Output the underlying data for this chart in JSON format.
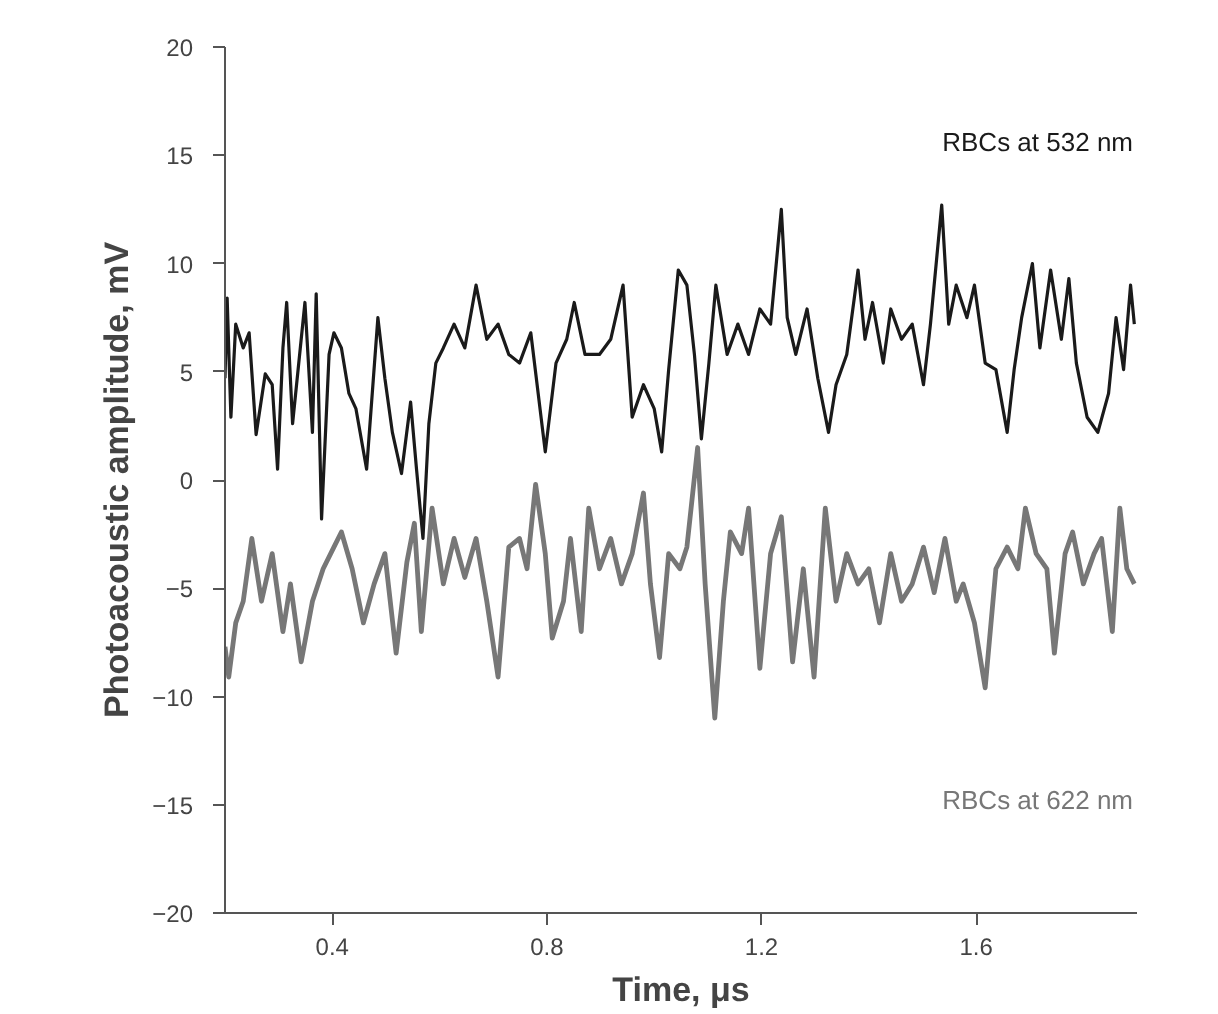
{
  "chart_data": {
    "type": "line",
    "xlabel": "Time, μs",
    "ylabel": "Photoacoustic amplitude, mV",
    "xlim": [
      0.2,
      1.9
    ],
    "ylim": [
      -20,
      20
    ],
    "xticks": [
      0.4,
      0.8,
      1.2,
      1.6
    ],
    "yticks": [
      -20,
      -15,
      -10,
      -5,
      0,
      5,
      10,
      15,
      20
    ],
    "grid": false,
    "legend": false,
    "marker": "none",
    "line_style": "solid",
    "series": [
      {
        "name": "RBCs at 532 nm",
        "color": "#1a1a1a",
        "x": [
          0.2,
          0.204,
          0.211,
          0.22,
          0.234,
          0.245,
          0.258,
          0.275,
          0.288,
          0.298,
          0.308,
          0.315,
          0.326,
          0.349,
          0.363,
          0.37,
          0.38,
          0.394,
          0.403,
          0.417,
          0.431,
          0.444,
          0.464,
          0.485,
          0.498,
          0.512,
          0.529,
          0.546,
          0.557,
          0.569,
          0.58,
          0.593,
          0.607,
          0.627,
          0.647,
          0.668,
          0.688,
          0.709,
          0.729,
          0.749,
          0.77,
          0.797,
          0.817,
          0.837,
          0.851,
          0.871,
          0.898,
          0.919,
          0.942,
          0.959,
          0.98,
          1.0,
          1.014,
          1.027,
          1.045,
          1.061,
          1.075,
          1.088,
          1.102,
          1.115,
          1.136,
          1.156,
          1.176,
          1.197,
          1.217,
          1.237,
          1.248,
          1.264,
          1.285,
          1.305,
          1.325,
          1.339,
          1.359,
          1.38,
          1.393,
          1.407,
          1.427,
          1.441,
          1.461,
          1.481,
          1.502,
          1.515,
          1.536,
          1.549,
          1.563,
          1.583,
          1.597,
          1.617,
          1.637,
          1.658,
          1.671,
          1.685,
          1.705,
          1.719,
          1.739,
          1.759,
          1.773,
          1.787,
          1.807,
          1.827,
          1.847,
          1.861,
          1.875,
          1.888,
          1.895
        ],
        "values": [
          4.7,
          8.4,
          2.9,
          7.2,
          6.1,
          6.8,
          2.1,
          4.9,
          4.4,
          0.5,
          6.1,
          8.2,
          2.6,
          8.2,
          2.2,
          8.6,
          -1.8,
          5.8,
          6.8,
          6.1,
          4.0,
          3.3,
          0.5,
          7.5,
          4.7,
          2.2,
          0.3,
          3.6,
          0.5,
          -2.7,
          2.6,
          5.4,
          6.1,
          7.2,
          6.1,
          9.0,
          6.5,
          7.2,
          5.8,
          5.4,
          6.8,
          1.3,
          5.4,
          6.5,
          8.2,
          5.8,
          5.8,
          6.5,
          9.0,
          2.9,
          4.4,
          3.3,
          1.3,
          5.1,
          9.7,
          9.0,
          5.8,
          1.9,
          5.4,
          9.0,
          5.8,
          7.2,
          5.8,
          7.9,
          7.2,
          12.5,
          7.5,
          5.8,
          7.9,
          4.7,
          2.2,
          4.4,
          5.8,
          9.7,
          6.5,
          8.2,
          5.4,
          7.9,
          6.5,
          7.2,
          4.4,
          7.2,
          12.7,
          7.2,
          9.0,
          7.5,
          9.0,
          5.4,
          5.1,
          2.2,
          5.1,
          7.5,
          10.0,
          6.1,
          9.7,
          6.5,
          9.3,
          5.4,
          2.9,
          2.2,
          4.0,
          7.5,
          5.1,
          9.0,
          7.2
        ]
      },
      {
        "name": "RBCs at 622 nm",
        "color": "#777777",
        "x": [
          0.2,
          0.207,
          0.22,
          0.234,
          0.25,
          0.268,
          0.288,
          0.308,
          0.322,
          0.342,
          0.363,
          0.383,
          0.403,
          0.417,
          0.437,
          0.458,
          0.478,
          0.498,
          0.519,
          0.539,
          0.553,
          0.566,
          0.586,
          0.607,
          0.627,
          0.647,
          0.668,
          0.688,
          0.709,
          0.729,
          0.749,
          0.763,
          0.779,
          0.797,
          0.81,
          0.831,
          0.844,
          0.864,
          0.878,
          0.898,
          0.919,
          0.939,
          0.959,
          0.98,
          0.993,
          1.01,
          1.027,
          1.048,
          1.061,
          1.081,
          1.095,
          1.113,
          1.129,
          1.142,
          1.163,
          1.176,
          1.197,
          1.217,
          1.237,
          1.258,
          1.278,
          1.298,
          1.319,
          1.339,
          1.359,
          1.38,
          1.4,
          1.42,
          1.441,
          1.461,
          1.481,
          1.502,
          1.522,
          1.542,
          1.563,
          1.576,
          1.597,
          1.617,
          1.637,
          1.658,
          1.678,
          1.692,
          1.712,
          1.732,
          1.746,
          1.766,
          1.78,
          1.8,
          1.82,
          1.834,
          1.854,
          1.868,
          1.881,
          1.895
        ],
        "values": [
          -7.7,
          -9.1,
          -6.6,
          -5.6,
          -2.7,
          -5.6,
          -3.4,
          -7.0,
          -4.8,
          -8.4,
          -5.6,
          -4.1,
          -3.1,
          -2.4,
          -4.1,
          -6.6,
          -4.8,
          -3.4,
          -8.0,
          -3.8,
          -2.0,
          -7.0,
          -1.3,
          -4.8,
          -2.7,
          -4.5,
          -2.7,
          -5.6,
          -9.1,
          -3.1,
          -2.7,
          -4.1,
          -0.2,
          -3.4,
          -7.3,
          -5.6,
          -2.7,
          -7.0,
          -1.3,
          -4.1,
          -2.7,
          -4.8,
          -3.4,
          -0.6,
          -4.8,
          -8.2,
          -3.4,
          -4.1,
          -3.1,
          1.5,
          -4.8,
          -11.0,
          -5.6,
          -2.4,
          -3.4,
          -1.3,
          -8.7,
          -3.4,
          -1.7,
          -8.4,
          -4.1,
          -9.1,
          -1.3,
          -5.6,
          -3.4,
          -4.8,
          -4.1,
          -6.6,
          -3.4,
          -5.6,
          -4.8,
          -3.1,
          -5.2,
          -2.7,
          -5.6,
          -4.8,
          -6.6,
          -9.6,
          -4.1,
          -3.1,
          -4.1,
          -1.3,
          -3.4,
          -4.1,
          -8.0,
          -3.4,
          -2.4,
          -4.8,
          -3.4,
          -2.7,
          -7.0,
          -1.3,
          -4.1,
          -4.8
        ]
      }
    ]
  }
}
